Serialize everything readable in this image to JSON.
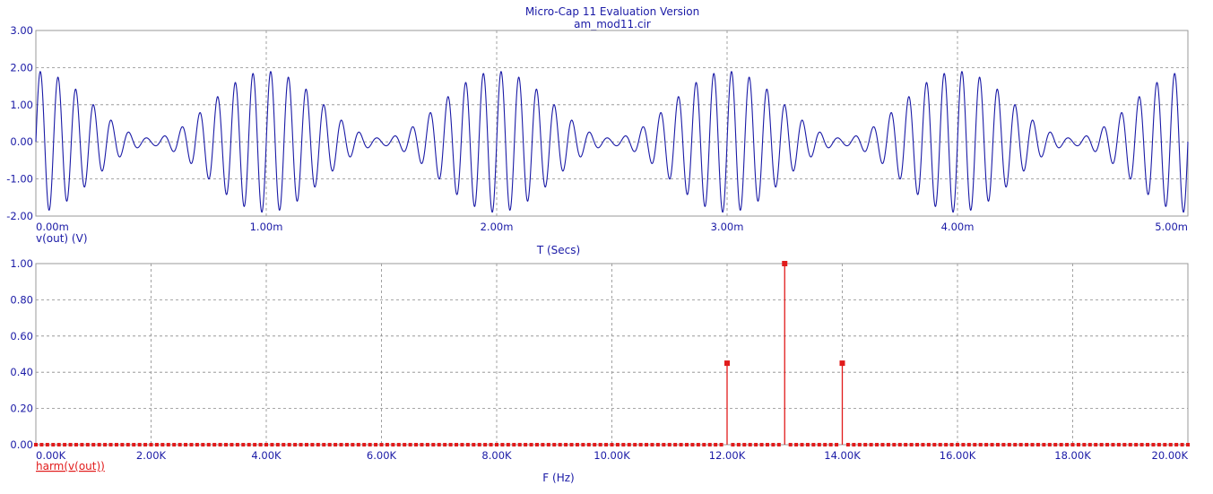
{
  "title": "Micro-Cap 11 Evaluation Version",
  "subtitle": "am_mod11.cir",
  "colors": {
    "text": "#1a1aa6",
    "trace_time": "#1a1aa6",
    "trace_freq": "#e11b1b",
    "grid": "#8a8a8a"
  },
  "chart_data": [
    {
      "type": "line",
      "xlabel": "T (Secs)",
      "ylabel": "v(out) (V)",
      "xlim": [
        0,
        0.005
      ],
      "ylim": [
        -2,
        3
      ],
      "x_ticks": [
        "0.00m",
        "1.00m",
        "2.00m",
        "3.00m",
        "4.00m",
        "5.00m"
      ],
      "y_ticks": [
        "-2.00",
        "-1.00",
        "0.00",
        "1.00",
        "2.00",
        "3.00"
      ],
      "grid": true,
      "series": [
        {
          "name": "v(out)",
          "model": "(1 + 0.9*cos(2*pi*fm*t)) * sin(2*pi*fc*t)",
          "carrier_hz": 13000,
          "modulation_hz": 1000,
          "modulation_index": 0.9,
          "peak_v": 1.9
        }
      ]
    },
    {
      "type": "bar",
      "xlabel": "F (Hz)",
      "ylabel": "harm(v(out))",
      "xlim": [
        0,
        20000
      ],
      "ylim": [
        0,
        1
      ],
      "x_ticks": [
        "0.00K",
        "2.00K",
        "4.00K",
        "6.00K",
        "8.00K",
        "10.00K",
        "12.00K",
        "14.00K",
        "16.00K",
        "18.00K",
        "20.00K"
      ],
      "y_ticks": [
        "0.00",
        "0.20",
        "0.40",
        "0.60",
        "0.80",
        "1.00"
      ],
      "grid": true,
      "harmonic_step_hz": 1000,
      "series": [
        {
          "name": "harm(v(out))",
          "x": [
            12000,
            13000,
            14000
          ],
          "values": [
            0.45,
            1.0,
            0.45
          ]
        }
      ]
    }
  ]
}
